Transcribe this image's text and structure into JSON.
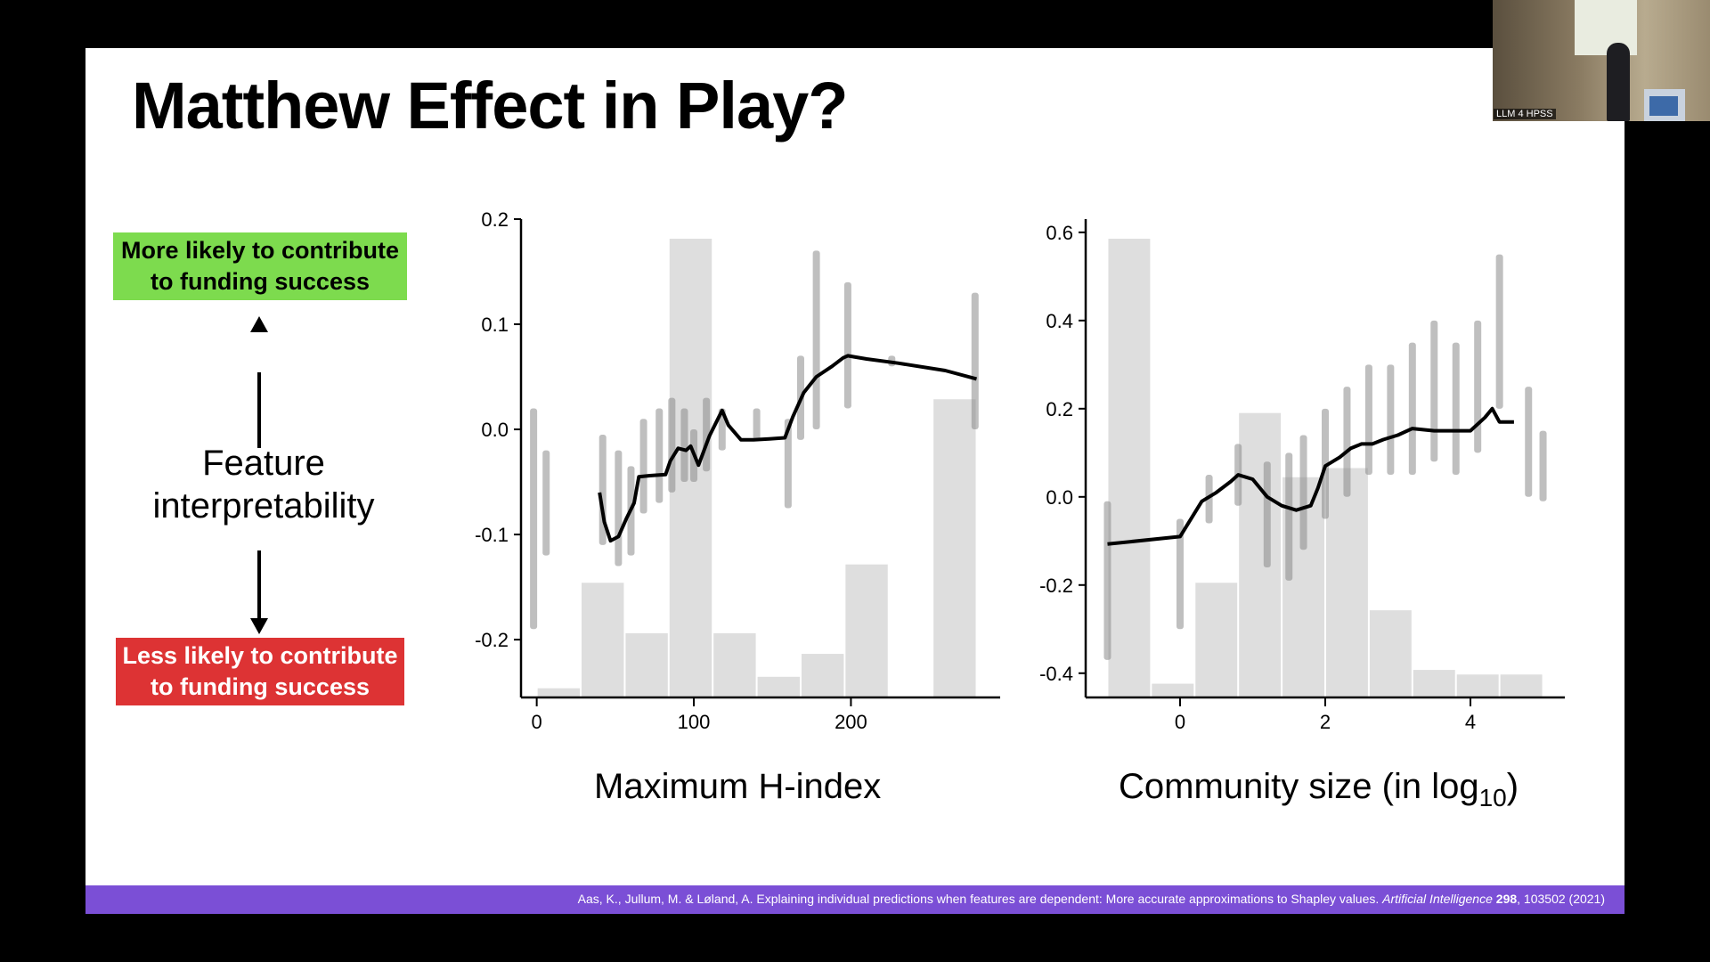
{
  "slide": {
    "title": "Matthew Effect in Play?",
    "badge_more": "More likely to contribute to funding success",
    "badge_less": "Less likely to contribute to funding success",
    "feature_label_line1": "Feature",
    "feature_label_line2": "interpretability",
    "citation_authors": "Aas, K., Jullum, M. & Løland, A. Explaining individual predictions when features are dependent: More accurate approximations to Shapley values.",
    "citation_journal": "Artificial Intelligence",
    "citation_volume": "298",
    "citation_rest": ", 103502 (2021)",
    "colors": {
      "green": "#7ddb4e",
      "red": "#dd3334",
      "footer": "#7b4fd6"
    }
  },
  "webcam": {
    "label": "LLM 4 HPSS"
  },
  "chart_data": [
    {
      "type": "line",
      "xlabel": "Maximum H-index",
      "xlim": [
        -10,
        295
      ],
      "ylim": [
        -0.255,
        0.2
      ],
      "xticks": [
        0,
        100,
        200
      ],
      "yticks": [
        -0.2,
        -0.1,
        0.0,
        0.1,
        0.2
      ],
      "ytick_labels": [
        "-0.2",
        "-0.1",
        "0.0",
        "0.1",
        "0.2"
      ],
      "line": {
        "x": [
          40,
          43,
          47,
          52,
          57,
          62,
          65,
          72,
          82,
          85,
          90,
          95,
          98,
          103,
          110,
          118,
          122,
          130,
          138,
          148,
          158,
          163,
          170,
          178,
          188,
          195,
          198,
          202,
          210,
          230,
          260,
          280
        ],
        "y": [
          -0.06,
          -0.088,
          -0.106,
          -0.102,
          -0.085,
          -0.07,
          -0.045,
          -0.044,
          -0.043,
          -0.03,
          -0.018,
          -0.02,
          -0.016,
          -0.034,
          -0.006,
          0.018,
          0.004,
          -0.01,
          -0.01,
          -0.009,
          -0.008,
          0.012,
          0.035,
          0.05,
          0.06,
          0.068,
          0.07,
          0.069,
          0.067,
          0.063,
          0.056,
          0.048
        ]
      },
      "hist": {
        "edges": [
          0,
          28,
          56,
          84,
          112,
          140,
          168,
          196,
          224,
          252,
          280
        ],
        "heights": [
          0.02,
          0.25,
          0.14,
          1.0,
          0.14,
          0.045,
          0.095,
          0.29,
          0.0,
          0.65
        ]
      },
      "scatter_columns": [
        {
          "x": -2,
          "lo": -0.19,
          "hi": 0.02
        },
        {
          "x": 6,
          "lo": -0.12,
          "hi": -0.02
        },
        {
          "x": 42,
          "lo": -0.11,
          "hi": -0.005
        },
        {
          "x": 52,
          "lo": -0.13,
          "hi": -0.02
        },
        {
          "x": 60,
          "lo": -0.12,
          "hi": -0.035
        },
        {
          "x": 68,
          "lo": -0.08,
          "hi": 0.01
        },
        {
          "x": 78,
          "lo": -0.07,
          "hi": 0.02
        },
        {
          "x": 86,
          "lo": -0.06,
          "hi": 0.03
        },
        {
          "x": 94,
          "lo": -0.05,
          "hi": 0.02
        },
        {
          "x": 100,
          "lo": -0.05,
          "hi": 0.0
        },
        {
          "x": 108,
          "lo": -0.04,
          "hi": 0.03
        },
        {
          "x": 118,
          "lo": -0.02,
          "hi": 0.02
        },
        {
          "x": 140,
          "lo": -0.01,
          "hi": 0.02
        },
        {
          "x": 160,
          "lo": -0.075,
          "hi": 0.01
        },
        {
          "x": 168,
          "lo": -0.01,
          "hi": 0.07
        },
        {
          "x": 178,
          "lo": 0.0,
          "hi": 0.17
        },
        {
          "x": 198,
          "lo": 0.02,
          "hi": 0.14
        },
        {
          "x": 226,
          "lo": 0.06,
          "hi": 0.07
        },
        {
          "x": 279,
          "lo": 0.0,
          "hi": 0.13
        }
      ]
    },
    {
      "type": "line",
      "xlabel_main": "Community size (in log",
      "xlabel_sub": "10",
      "xlabel_close": ")",
      "xlim": [
        -1.3,
        5.3
      ],
      "ylim": [
        -0.455,
        0.63
      ],
      "xticks": [
        0,
        2,
        4
      ],
      "yticks": [
        -0.4,
        -0.2,
        0.0,
        0.2,
        0.4,
        0.6
      ],
      "ytick_labels": [
        "-0.4",
        "-0.2",
        "0.0",
        "0.2",
        "0.4",
        "0.6"
      ],
      "line": {
        "x": [
          -1.0,
          0.0,
          0.3,
          0.5,
          0.7,
          0.8,
          1.0,
          1.2,
          1.4,
          1.6,
          1.8,
          1.9,
          2.0,
          2.2,
          2.35,
          2.5,
          2.65,
          2.8,
          3.0,
          3.2,
          3.5,
          3.7,
          4.0,
          4.2,
          4.3,
          4.4,
          4.6
        ],
        "y": [
          -0.107,
          -0.09,
          -0.01,
          0.01,
          0.035,
          0.05,
          0.04,
          0.0,
          -0.02,
          -0.03,
          -0.02,
          0.02,
          0.07,
          0.09,
          0.11,
          0.12,
          0.12,
          0.13,
          0.14,
          0.155,
          0.15,
          0.15,
          0.15,
          0.18,
          0.2,
          0.17,
          0.17
        ]
      },
      "hist": {
        "edges": [
          -1.0,
          -0.4,
          0.2,
          0.8,
          1.4,
          2.0,
          2.6,
          3.2,
          3.8,
          4.4,
          5.0
        ],
        "heights": [
          1.0,
          0.03,
          0.25,
          0.62,
          0.48,
          0.5,
          0.19,
          0.06,
          0.05,
          0.05
        ]
      },
      "scatter_columns": [
        {
          "x": -1.0,
          "lo": -0.37,
          "hi": -0.01
        },
        {
          "x": 0.0,
          "lo": -0.3,
          "hi": -0.05
        },
        {
          "x": 0.4,
          "lo": -0.06,
          "hi": 0.05
        },
        {
          "x": 0.8,
          "lo": -0.02,
          "hi": 0.12
        },
        {
          "x": 1.2,
          "lo": -0.16,
          "hi": 0.08
        },
        {
          "x": 1.5,
          "lo": -0.19,
          "hi": 0.1
        },
        {
          "x": 1.7,
          "lo": -0.12,
          "hi": 0.14
        },
        {
          "x": 2.0,
          "lo": -0.05,
          "hi": 0.2
        },
        {
          "x": 2.3,
          "lo": 0.0,
          "hi": 0.25
        },
        {
          "x": 2.6,
          "lo": 0.05,
          "hi": 0.3
        },
        {
          "x": 2.9,
          "lo": 0.05,
          "hi": 0.3
        },
        {
          "x": 3.2,
          "lo": 0.05,
          "hi": 0.35
        },
        {
          "x": 3.5,
          "lo": 0.08,
          "hi": 0.4
        },
        {
          "x": 3.8,
          "lo": 0.05,
          "hi": 0.35
        },
        {
          "x": 4.1,
          "lo": 0.1,
          "hi": 0.4
        },
        {
          "x": 4.4,
          "lo": 0.2,
          "hi": 0.55
        },
        {
          "x": 4.8,
          "lo": 0.0,
          "hi": 0.25
        },
        {
          "x": 5.0,
          "lo": -0.01,
          "hi": 0.15
        }
      ]
    }
  ]
}
